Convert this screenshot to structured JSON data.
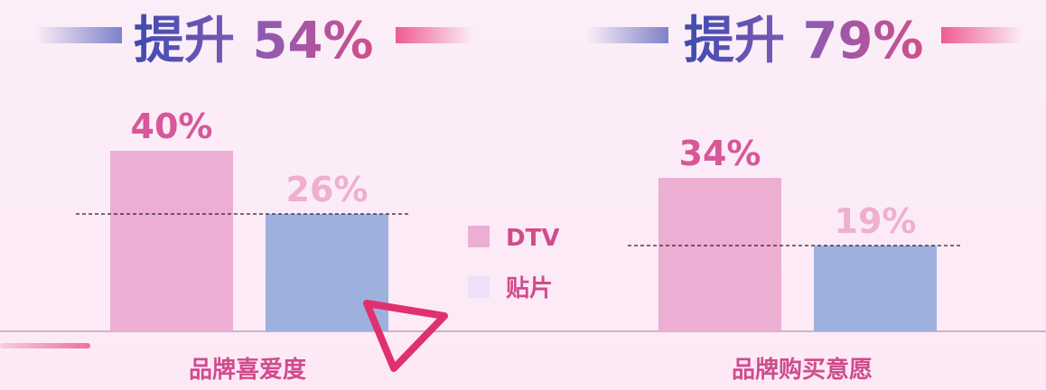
{
  "headlines": [
    {
      "label": "提升 54%"
    },
    {
      "label": "提升 79%"
    }
  ],
  "legend": [
    {
      "label": "DTV",
      "color": "#ecafd3"
    },
    {
      "label": "贴片",
      "color": "#ede0f8"
    }
  ],
  "colors": {
    "dtv_bar": "#ecafd3",
    "tiepian_bar": "#9eb0dd",
    "dtv_text": "#d7579a",
    "tiepian_text": "#efafcf"
  },
  "chart_data": [
    {
      "type": "bar",
      "categories": [
        "品牌喜爱度"
      ],
      "series": [
        {
          "name": "DTV",
          "values": [
            40
          ]
        },
        {
          "name": "贴片",
          "values": [
            26
          ]
        }
      ],
      "value_labels": [
        "40%",
        "26%"
      ],
      "reference_line": 26,
      "ylim": [
        0,
        40
      ]
    },
    {
      "type": "bar",
      "categories": [
        "品牌购买意愿"
      ],
      "series": [
        {
          "name": "DTV",
          "values": [
            34
          ]
        },
        {
          "name": "贴片",
          "values": [
            19
          ]
        }
      ],
      "value_labels": [
        "34%",
        "19%"
      ],
      "reference_line": 19,
      "ylim": [
        0,
        40
      ]
    }
  ]
}
